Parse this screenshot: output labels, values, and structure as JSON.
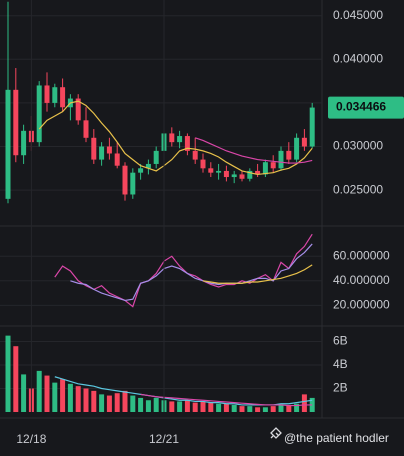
{
  "chart_data": [
    {
      "type": "candlestick",
      "color_up": "#2ebd85",
      "color_down": "#f6465d",
      "ohlc": [
        [
          0.024,
          0.0466,
          0.0235,
          0.0365
        ],
        [
          0.0365,
          0.039,
          0.0282,
          0.029
        ],
        [
          0.029,
          0.0325,
          0.028,
          0.0318
        ],
        [
          0.0318,
          0.0335,
          0.0295,
          0.0305
        ],
        [
          0.0305,
          0.0375,
          0.03,
          0.037
        ],
        [
          0.037,
          0.0385,
          0.034,
          0.035
        ],
        [
          0.035,
          0.0372,
          0.0345,
          0.0368
        ],
        [
          0.0368,
          0.0378,
          0.034,
          0.0345
        ],
        [
          0.0345,
          0.036,
          0.033,
          0.0355
        ],
        [
          0.0355,
          0.036,
          0.0325,
          0.033
        ],
        [
          0.033,
          0.0345,
          0.0305,
          0.031
        ],
        [
          0.031,
          0.032,
          0.028,
          0.0285
        ],
        [
          0.0285,
          0.0305,
          0.0278,
          0.03
        ],
        [
          0.03,
          0.031,
          0.0285,
          0.0292
        ],
        [
          0.0292,
          0.0305,
          0.0275,
          0.0278
        ],
        [
          0.0278,
          0.0282,
          0.0238,
          0.0245
        ],
        [
          0.0245,
          0.0275,
          0.024,
          0.027
        ],
        [
          0.027,
          0.028,
          0.0262,
          0.0275
        ],
        [
          0.0275,
          0.0285,
          0.0268,
          0.028
        ],
        [
          0.028,
          0.03,
          0.0275,
          0.0295
        ],
        [
          0.0295,
          0.032,
          0.029,
          0.0315
        ],
        [
          0.0315,
          0.0322,
          0.03,
          0.0305
        ],
        [
          0.0305,
          0.0318,
          0.0298,
          0.0312
        ],
        [
          0.0312,
          0.0315,
          0.029,
          0.0295
        ],
        [
          0.0295,
          0.031,
          0.028,
          0.0285
        ],
        [
          0.0285,
          0.0292,
          0.027,
          0.0275
        ],
        [
          0.0275,
          0.0282,
          0.0265,
          0.027
        ],
        [
          0.027,
          0.028,
          0.0262,
          0.0272
        ],
        [
          0.0272,
          0.0278,
          0.026,
          0.0265
        ],
        [
          0.0265,
          0.0272,
          0.0258,
          0.0268
        ],
        [
          0.0268,
          0.0272,
          0.026,
          0.0263
        ],
        [
          0.0263,
          0.0275,
          0.026,
          0.0272
        ],
        [
          0.0272,
          0.028,
          0.0265,
          0.0268
        ],
        [
          0.0268,
          0.0285,
          0.0265,
          0.0282
        ],
        [
          0.0282,
          0.029,
          0.027,
          0.0275
        ],
        [
          0.0275,
          0.03,
          0.0272,
          0.0295
        ],
        [
          0.0295,
          0.0305,
          0.028,
          0.0285
        ],
        [
          0.0285,
          0.0315,
          0.0282,
          0.031
        ],
        [
          0.031,
          0.032,
          0.0295,
          0.03
        ],
        [
          0.03,
          0.035,
          0.0298,
          0.034466
        ]
      ],
      "series": [
        {
          "color": "#e8c14a",
          "values": [
            null,
            null,
            null,
            null,
            0.032,
            0.033,
            0.0335,
            0.034,
            0.035,
            0.0352,
            0.0347,
            0.0338,
            0.0327,
            0.0317,
            0.0305,
            0.0292,
            0.0285,
            0.0278,
            0.0275,
            0.0272,
            0.0278,
            0.0285,
            0.0295,
            0.0298,
            0.0297,
            0.0295,
            0.0292,
            0.0288,
            0.0282,
            0.0277,
            0.0272,
            0.027,
            0.0268,
            0.0269,
            0.027,
            0.0273,
            0.0275,
            0.028,
            0.0287,
            0.0298
          ]
        },
        {
          "color": "#d946a8",
          "values": [
            null,
            null,
            null,
            null,
            null,
            null,
            null,
            null,
            null,
            null,
            null,
            null,
            null,
            null,
            null,
            null,
            null,
            null,
            null,
            null,
            null,
            null,
            null,
            null,
            0.031,
            0.0307,
            0.0303,
            0.0299,
            0.0295,
            0.0292,
            0.0289,
            0.0287,
            0.0285,
            0.0284,
            0.0283,
            0.0282,
            0.0281,
            0.0281,
            0.0282,
            0.0284
          ]
        }
      ],
      "last_price": 0.034466,
      "ylim": [
        0.021,
        0.0468
      ],
      "yticks": [
        {
          "value": 0.025,
          "label": "0.025000"
        },
        {
          "value": 0.03,
          "label": "0.030000"
        },
        {
          "value": 0.035,
          "label": "0.035000"
        },
        {
          "value": 0.04,
          "label": "0.040000"
        },
        {
          "value": 0.045,
          "label": "0.045000"
        }
      ],
      "grid": true
    },
    {
      "type": "line",
      "series": [
        {
          "color": "#d946a8",
          "values": [
            null,
            null,
            null,
            null,
            null,
            null,
            43,
            52,
            48,
            40,
            36,
            33,
            36,
            30,
            27,
            24,
            19,
            38,
            40,
            46,
            56,
            60,
            52,
            46,
            44,
            40,
            37,
            35,
            37,
            37,
            40,
            38,
            42,
            45,
            40,
            55,
            50,
            62,
            68,
            78
          ]
        },
        {
          "color": "#a58ee8",
          "values": [
            null,
            null,
            null,
            null,
            null,
            null,
            null,
            null,
            40,
            38,
            37,
            33,
            30,
            28,
            26,
            24,
            25,
            38,
            40,
            44,
            50,
            52,
            50,
            46,
            42,
            40,
            38,
            37,
            38,
            38,
            38,
            40,
            42,
            42,
            40,
            48,
            50,
            58,
            63,
            70
          ]
        },
        {
          "color": "#e8c14a",
          "values": [
            null,
            null,
            null,
            null,
            null,
            null,
            null,
            null,
            null,
            null,
            null,
            null,
            null,
            null,
            null,
            null,
            null,
            null,
            null,
            null,
            null,
            null,
            null,
            null,
            null,
            40,
            39,
            38,
            38,
            38,
            38,
            39,
            39,
            40,
            41,
            42,
            44,
            46,
            49,
            53
          ]
        }
      ],
      "ylim": [
        4,
        83
      ],
      "yticks": [
        {
          "value": 20,
          "label": "20.000000"
        },
        {
          "value": 40,
          "label": "40.000000"
        },
        {
          "value": 60,
          "label": "60.000000"
        }
      ],
      "grid": true
    },
    {
      "type": "bar",
      "categories": [
        null,
        null,
        null,
        "12/18",
        null,
        null,
        null,
        null,
        null,
        null,
        null,
        null,
        null,
        null,
        null,
        null,
        null,
        null,
        null,
        null,
        "12/21",
        null,
        null,
        null,
        null,
        null,
        null,
        null,
        null,
        null,
        null,
        null,
        null,
        null,
        null,
        null,
        null,
        null,
        null,
        null
      ],
      "values": [
        6.5,
        5.6,
        3.2,
        2.0,
        3.5,
        3.1,
        2.5,
        2.8,
        2.4,
        2.2,
        2.0,
        1.8,
        1.5,
        1.4,
        1.6,
        1.8,
        1.4,
        1.2,
        1.0,
        1.2,
        1.0,
        0.9,
        0.9,
        1.0,
        0.8,
        0.9,
        0.8,
        0.7,
        0.7,
        0.6,
        0.5,
        0.5,
        0.4,
        0.4,
        0.5,
        0.6,
        0.6,
        0.7,
        1.5,
        1.2
      ],
      "series": [
        {
          "color": "#5bc8e0",
          "values": [
            null,
            null,
            null,
            null,
            null,
            null,
            3.0,
            2.8,
            2.6,
            2.4,
            2.3,
            2.2,
            2.0,
            1.9,
            1.8,
            1.7,
            1.6,
            1.5,
            1.4,
            1.3,
            1.2,
            1.1,
            1.0,
            1.0,
            0.9,
            0.9,
            0.8,
            0.8,
            0.7,
            0.7,
            0.6,
            0.6,
            0.6,
            0.6,
            0.6,
            0.7,
            0.7,
            0.8,
            0.9,
            1.0
          ]
        },
        {
          "color": "#d946a8",
          "values": [
            null,
            null,
            null,
            null,
            null,
            null,
            null,
            null,
            null,
            null,
            null,
            null,
            null,
            null,
            null,
            null,
            null,
            1.5,
            1.4,
            1.3,
            1.25,
            1.2,
            1.15,
            1.1,
            1.05,
            1.0,
            0.95,
            0.9,
            0.85,
            0.8,
            0.75,
            0.7,
            0.65,
            0.6,
            0.6,
            0.6,
            0.55,
            0.55,
            0.6,
            0.6
          ]
        }
      ],
      "ylim": [
        0,
        7.15
      ],
      "yticks": [
        {
          "value": 2,
          "label": "2B"
        },
        {
          "value": 4,
          "label": "4B"
        },
        {
          "value": 6,
          "label": "6B"
        }
      ],
      "grid": true
    }
  ],
  "watermark": "@the patient hodler"
}
